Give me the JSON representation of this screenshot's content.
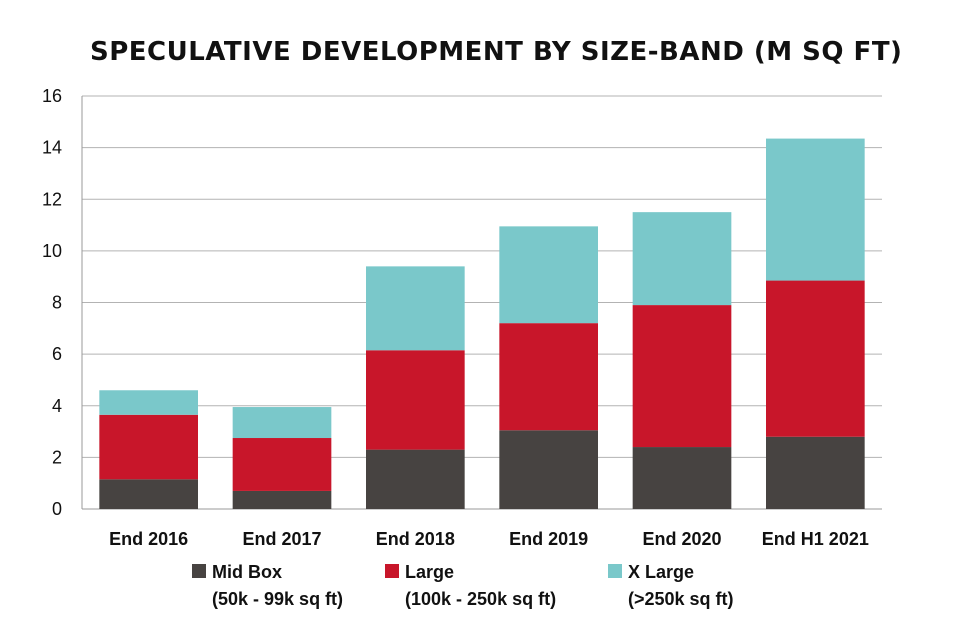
{
  "chart_data": {
    "type": "bar",
    "stacked": true,
    "title": "SPECULATIVE DEVELOPMENT BY SIZE-BAND (M SQ FT)",
    "xlabel": "",
    "ylabel": "",
    "ylim": [
      0,
      16
    ],
    "yticks": [
      0,
      2,
      4,
      6,
      8,
      10,
      12,
      14,
      16
    ],
    "grid": true,
    "legend_position": "bottom",
    "categories": [
      "End 2016",
      "End 2017",
      "End 2018",
      "End 2019",
      "End 2020",
      "End H1 2021"
    ],
    "series": [
      {
        "name": "Mid Box",
        "sublabel": "(50k - 99k sq ft)",
        "color": "#474341",
        "values": [
          1.15,
          0.7,
          2.3,
          3.05,
          2.4,
          2.8
        ]
      },
      {
        "name": "Large",
        "sublabel": "(100k - 250k sq ft)",
        "color": "#c8162a",
        "values": [
          2.5,
          2.05,
          3.85,
          4.15,
          5.5,
          6.05
        ]
      },
      {
        "name": "X Large",
        "sublabel": "(>250k sq ft)",
        "color": "#7ac8ca",
        "values": [
          0.95,
          1.2,
          3.25,
          3.75,
          3.6,
          5.5
        ]
      }
    ]
  }
}
